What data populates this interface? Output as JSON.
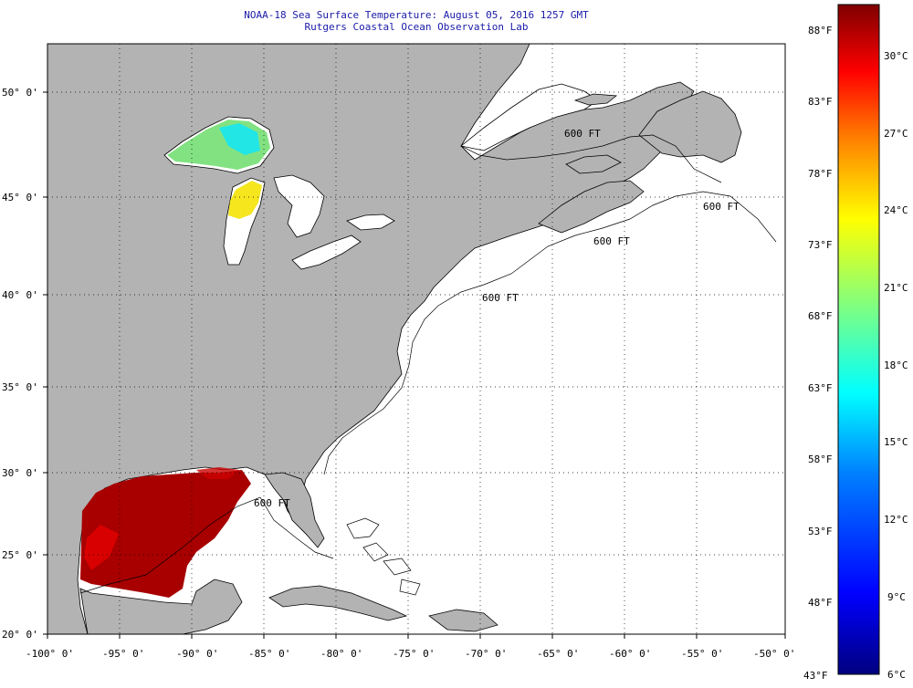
{
  "title": "NOAA-18 Sea Surface Temperature:  August 05, 2016 1257 GMT",
  "subtitle": "Rutgers Coastal Ocean Observation Lab",
  "map": {
    "lon_range": [
      -100,
      -50
    ],
    "lat_range": [
      20,
      52.5
    ],
    "gridlines": "dotted",
    "lon_labels": [
      "-100° 0'",
      "-95° 0'",
      "-90° 0'",
      "-85° 0'",
      "-80° 0'",
      "-75° 0'",
      "-70° 0'",
      "-65° 0'",
      "-60° 0'",
      "-55° 0'",
      "-50° 0'"
    ],
    "lat_labels": [
      "20° 0'",
      "25° 0'",
      "30° 0'",
      "35° 0'",
      "40° 0'",
      "45° 0'",
      "50° 0'"
    ],
    "isobath_labels": [
      "600 FT",
      "600 FT",
      "600 FT",
      "600 FT",
      "600 FT"
    ],
    "colors": {
      "land": "#b3b3b3",
      "ocean": "#ffffff",
      "coast": "#000000",
      "title": "#1a1aa8"
    }
  },
  "colorbar": {
    "fahrenheit_labels": [
      "88°F",
      "83°F",
      "78°F",
      "73°F",
      "68°F",
      "63°F",
      "58°F",
      "53°F",
      "48°F",
      "43°F"
    ],
    "celsius_labels": [
      "30°C",
      "27°C",
      "24°C",
      "21°C",
      "18°C",
      "15°C",
      "12°C",
      "9°C",
      "6°C"
    ],
    "stops": [
      "#00007f",
      "#0000ff",
      "#0080ff",
      "#00ffff",
      "#80ff80",
      "#ffff00",
      "#ff8000",
      "#ff0000",
      "#7f0000"
    ]
  }
}
